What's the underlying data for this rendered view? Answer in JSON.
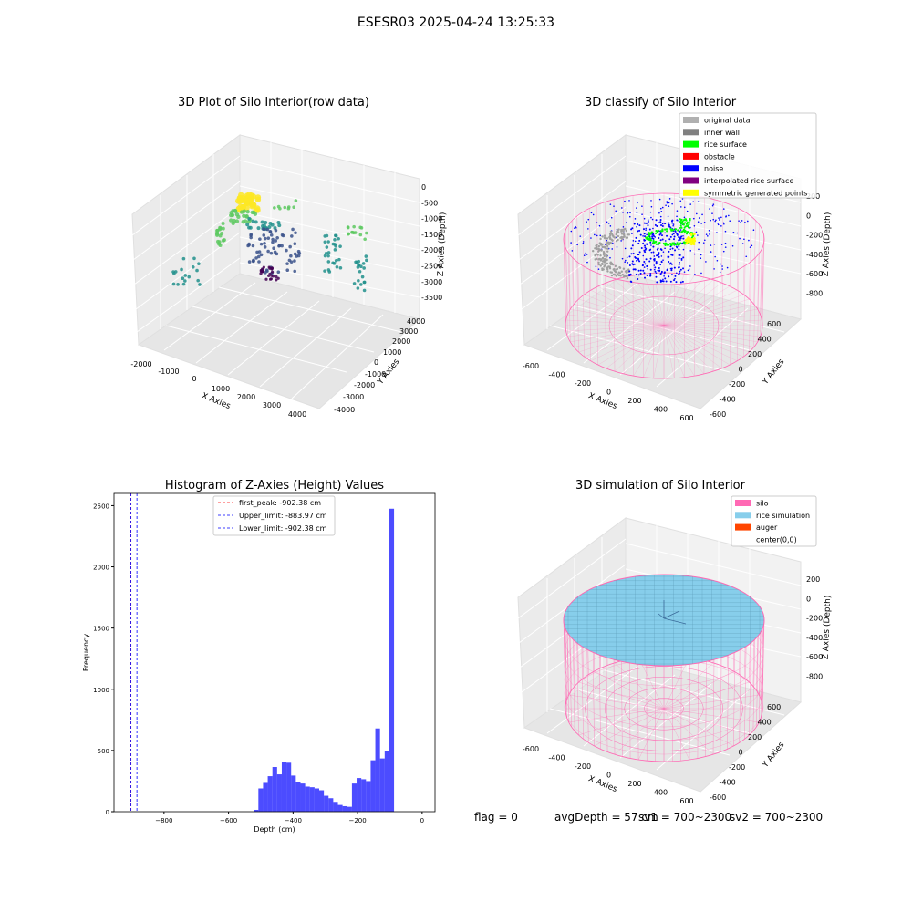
{
  "figure": {
    "suptitle": "ESESR03 2025-04-24 13:25:33",
    "status": {
      "flag": "flag = 0",
      "avg_depth": "avgDepth = 57 cm",
      "sv1": "sv1 = 700~2300",
      "sv2": "sv2 = 700~2300"
    }
  },
  "chart_data": [
    {
      "type": "scatter3d",
      "title": "3D Plot of Silo Interior(row data)",
      "xlabel": "X Axies",
      "ylabel": "Y Axies",
      "zlabel": "Z Axies (Depth)",
      "x_ticks": [
        "-2000",
        "-1000",
        "0",
        "1000",
        "2000",
        "3000",
        "4000"
      ],
      "y_ticks": [
        "-4000",
        "-3000",
        "-2000",
        "-1000",
        "0",
        "1000",
        "2000",
        "3000",
        "4000"
      ],
      "z_ticks": [
        "0",
        "-500",
        "-1000",
        "-1500",
        "-2000",
        "-2500",
        "-3000",
        "-3500"
      ],
      "xlim": [
        -2300,
        4300
      ],
      "ylim": [
        -4200,
        4200
      ],
      "zlim": [
        -3700,
        200
      ],
      "colormap": [
        "#440154",
        "#3b528b",
        "#21918c",
        "#5ec962",
        "#fde725"
      ]
    },
    {
      "type": "scatter3d",
      "title": "3D classify of Silo Interior",
      "xlabel": "X Axies",
      "ylabel": "Y Axies",
      "zlabel": "Z Axies (Depth)",
      "x_ticks": [
        "-600",
        "-400",
        "-200",
        "0",
        "200",
        "400",
        "600"
      ],
      "y_ticks": [
        "-600",
        "-400",
        "-200",
        "0",
        "200",
        "400",
        "600"
      ],
      "z_ticks": [
        "200",
        "0",
        "-200",
        "-400",
        "-600",
        "-800"
      ],
      "legend": [
        {
          "label": "original data",
          "color": "#b0b0b0"
        },
        {
          "label": "inner wall",
          "color": "#808080"
        },
        {
          "label": "rice surface",
          "color": "#00ff00"
        },
        {
          "label": "obstacle",
          "color": "#ff0000"
        },
        {
          "label": "noise",
          "color": "#0000ff"
        },
        {
          "label": "interpolated rice surface",
          "color": "#800080"
        },
        {
          "label": "symmetric generated points",
          "color": "#ffff00"
        }
      ],
      "legend_loc": "upper right",
      "wireframe_color": "#ff69b4"
    },
    {
      "type": "bar",
      "title": "Histogram of Z-Axies (Height) Values",
      "xlabel": "Depth (cm)",
      "ylabel": "Frequency",
      "xlim": [
        -955,
        40
      ],
      "ylim": [
        0,
        2600
      ],
      "x_ticks": [
        -800,
        -600,
        -400,
        -200,
        0
      ],
      "y_ticks": [
        0,
        500,
        1000,
        1500,
        2000,
        2500
      ],
      "bar_color": "#0000ff",
      "bin_width": 14.5,
      "bins": [
        {
          "x": -522,
          "y": 15
        },
        {
          "x": -507.5,
          "y": 190
        },
        {
          "x": -493,
          "y": 235
        },
        {
          "x": -478.5,
          "y": 290
        },
        {
          "x": -464,
          "y": 365
        },
        {
          "x": -449.5,
          "y": 305
        },
        {
          "x": -435,
          "y": 405
        },
        {
          "x": -420.5,
          "y": 400
        },
        {
          "x": -406,
          "y": 295
        },
        {
          "x": -391.5,
          "y": 240
        },
        {
          "x": -377,
          "y": 230
        },
        {
          "x": -362.5,
          "y": 205
        },
        {
          "x": -348,
          "y": 200
        },
        {
          "x": -333.5,
          "y": 190
        },
        {
          "x": -319,
          "y": 175
        },
        {
          "x": -304.5,
          "y": 130
        },
        {
          "x": -290,
          "y": 110
        },
        {
          "x": -275.5,
          "y": 80
        },
        {
          "x": -261,
          "y": 55
        },
        {
          "x": -246.5,
          "y": 45
        },
        {
          "x": -232,
          "y": 40
        },
        {
          "x": -217.5,
          "y": 230
        },
        {
          "x": -203,
          "y": 275
        },
        {
          "x": -188.5,
          "y": 265
        },
        {
          "x": -174,
          "y": 250
        },
        {
          "x": -159.5,
          "y": 420
        },
        {
          "x": -145,
          "y": 680
        },
        {
          "x": -130.5,
          "y": 435
        },
        {
          "x": -116,
          "y": 495
        },
        {
          "x": -101.5,
          "y": 2475
        }
      ],
      "vlines": [
        {
          "label": "first_peak: -902.38 cm",
          "x": -902.38,
          "color": "#ff0000"
        },
        {
          "label": "Upper_limit: -883.97 cm",
          "x": -883.97,
          "color": "#0000ff"
        },
        {
          "label": "Lower_limit: -902.38 cm",
          "x": -902.38,
          "color": "#0000ff"
        }
      ],
      "legend_loc": "upper center"
    },
    {
      "type": "surface3d",
      "title": "3D simulation of Silo Interior",
      "xlabel": "X Axies",
      "ylabel": "Y Axies",
      "zlabel": "Z Axies (Depth)",
      "x_ticks": [
        "-600",
        "-400",
        "-200",
        "0",
        "200",
        "400",
        "600"
      ],
      "y_ticks": [
        "-600",
        "-400",
        "-200",
        "0",
        "200",
        "400",
        "600"
      ],
      "z_ticks": [
        "200",
        "0",
        "-200",
        "-400",
        "-600",
        "-800"
      ],
      "legend": [
        {
          "label": "silo",
          "color": "#ff69b4"
        },
        {
          "label": "rice simulation",
          "color": "#87ceeb"
        },
        {
          "label": "auger",
          "color": "#ff4500"
        },
        {
          "label": "center(0,0)",
          "color": "#ffffff"
        }
      ],
      "legend_loc": "upper right"
    }
  ]
}
